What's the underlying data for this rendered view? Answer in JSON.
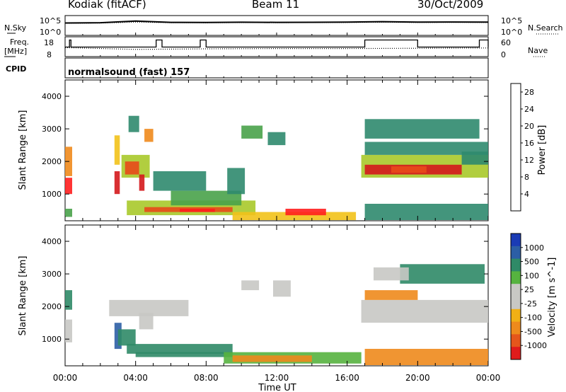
{
  "header": {
    "station": "Kodiak (fitACF)",
    "beam": "Beam 11",
    "date": "30/Oct/2009"
  },
  "status_panels": {
    "nsky_label": "N.Sky",
    "nsearch_label": "N.Search",
    "noise_ticks": [
      "10^5",
      "10^0"
    ],
    "freq_label_line1": "Freq.",
    "freq_label_line2": "[MHz]",
    "freq_ticks": [
      "18",
      "8"
    ],
    "nave_label": "Nave",
    "nave_ticks": [
      "60",
      "0"
    ],
    "cpid_label": "CPID",
    "cpid_text": "normalsound (fast) 157"
  },
  "colors": {
    "power_scale": [
      "#1f3fd9",
      "#2456a8",
      "#2f8a6e",
      "#49a24a",
      "#a9c92a",
      "#f2c21a",
      "#ef8a1c",
      "#e84a1a",
      "#d4181c",
      "#ff1e1e"
    ],
    "velocity_scale": [
      "#1a3bb5",
      "#2c5ea5",
      "#2f8a67",
      "#56b33f",
      "#c8c8c4",
      "#c8c8c4",
      "#f1b015",
      "#ee8a1c",
      "#e5561b",
      "#e01b1b"
    ]
  },
  "chart_data": [
    {
      "type": "line",
      "title": "Kodiak (fitACF)",
      "series": [
        {
          "name": "N.Sky",
          "x": [
            "00:00",
            "02:00",
            "04:00",
            "06:00",
            "08:00",
            "10:00",
            "12:00",
            "14:00",
            "16:00",
            "18:00",
            "20:00",
            "22:00",
            "00:00"
          ],
          "y": [
            1500,
            1800,
            5000,
            2200,
            2000,
            2400,
            2200,
            2300,
            2500,
            3500,
            2600,
            2800,
            2500
          ]
        },
        {
          "name": "N.Search",
          "x": [
            "00:00",
            "02:00",
            "04:00",
            "06:00",
            "08:00",
            "10:00",
            "12:00",
            "14:00",
            "16:00",
            "18:00",
            "20:00",
            "22:00",
            "00:00"
          ],
          "y": [
            1200,
            1400,
            2500,
            1800,
            1700,
            1900,
            1800,
            1900,
            2000,
            2400,
            2000,
            2200,
            2000
          ]
        }
      ],
      "ylabel": "N.Sky",
      "ylim_label": [
        "10^0",
        "10^5"
      ]
    },
    {
      "type": "line",
      "series": [
        {
          "name": "Freq. [MHz]",
          "x": [
            "00:00",
            "00:15",
            "00:20",
            "03:00",
            "05:10",
            "05:30",
            "07:40",
            "08:00",
            "10:00",
            "12:00",
            "13:00",
            "16:00",
            "17:00",
            "20:00",
            "20:30",
            "21:30",
            "22:20",
            "23:30",
            "00:00"
          ],
          "y": [
            13,
            17,
            13,
            13,
            17,
            13,
            17,
            13,
            13,
            13,
            13,
            13,
            17,
            13,
            13,
            13,
            13,
            17,
            13
          ]
        },
        {
          "name": "Nave",
          "x": [
            "00:00",
            "04:00",
            "08:00",
            "12:00",
            "16:00",
            "20:00",
            "00:00"
          ],
          "y": [
            28,
            22,
            24,
            25,
            25,
            26,
            27
          ]
        }
      ],
      "ylabel": "Freq. [MHz]",
      "y_ticks_left": [
        8,
        18
      ],
      "y2label": "Nave",
      "y_ticks_right": [
        0,
        60
      ]
    },
    {
      "type": "heatmap",
      "quantity": "Power",
      "xlabel": "",
      "ylabel": "Slant Range [km]",
      "x_ticks": [
        "00:00",
        "04:00",
        "08:00",
        "12:00",
        "16:00",
        "20:00",
        "00:00"
      ],
      "y_ticks": [
        1000,
        2000,
        3000,
        4000
      ],
      "ylim": [
        180,
        4500
      ],
      "colorbar_label": "Power [dB]",
      "colorbar_ticks": [
        4,
        8,
        12,
        16,
        20,
        24,
        28
      ],
      "colorbar_range": [
        0,
        30
      ],
      "regions": [
        {
          "t0": 0.0,
          "t1": 0.4,
          "r0": 1000,
          "r1": 1500,
          "v": 28
        },
        {
          "t0": 0.0,
          "t1": 0.4,
          "r0": 1550,
          "r1": 2450,
          "v": 18
        },
        {
          "t0": 0.0,
          "t1": 0.4,
          "r0": 300,
          "r1": 550,
          "v": 10
        },
        {
          "t0": 2.8,
          "t1": 3.1,
          "r0": 1900,
          "r1": 2800,
          "v": 16
        },
        {
          "t0": 2.8,
          "t1": 3.1,
          "r0": 1000,
          "r1": 1700,
          "v": 24
        },
        {
          "t0": 3.2,
          "t1": 4.8,
          "r0": 1500,
          "r1": 2200,
          "v": 12
        },
        {
          "t0": 3.4,
          "t1": 4.2,
          "r0": 1600,
          "r1": 2000,
          "v": 22
        },
        {
          "t0": 4.2,
          "t1": 4.5,
          "r0": 1100,
          "r1": 1600,
          "v": 26
        },
        {
          "t0": 3.6,
          "t1": 4.2,
          "r0": 2900,
          "r1": 3400,
          "v": 8
        },
        {
          "t0": 4.5,
          "t1": 5.0,
          "r0": 2600,
          "r1": 3000,
          "v": 20
        },
        {
          "t0": 3.5,
          "t1": 10.8,
          "r0": 350,
          "r1": 800,
          "v": 14
        },
        {
          "t0": 4.5,
          "t1": 9.5,
          "r0": 450,
          "r1": 600,
          "v": 22
        },
        {
          "t0": 6.5,
          "t1": 8.5,
          "r0": 450,
          "r1": 550,
          "v": 27
        },
        {
          "t0": 6.0,
          "t1": 10.0,
          "r0": 650,
          "r1": 1100,
          "v": 10
        },
        {
          "t0": 5.0,
          "t1": 8.0,
          "r0": 1100,
          "r1": 1700,
          "v": 6
        },
        {
          "t0": 9.2,
          "t1": 10.2,
          "r0": 1000,
          "r1": 1800,
          "v": 8
        },
        {
          "t0": 9.5,
          "t1": 16.5,
          "r0": 200,
          "r1": 450,
          "v": 16
        },
        {
          "t0": 12.5,
          "t1": 14.8,
          "r0": 350,
          "r1": 550,
          "v": 27
        },
        {
          "t0": 10.0,
          "t1": 11.2,
          "r0": 2700,
          "r1": 3100,
          "v": 10
        },
        {
          "t0": 11.5,
          "t1": 12.5,
          "r0": 2500,
          "r1": 2900,
          "v": 8
        },
        {
          "t0": 16.8,
          "t1": 24.0,
          "r0": 1500,
          "r1": 2200,
          "v": 12
        },
        {
          "t0": 17.0,
          "t1": 22.5,
          "r0": 1600,
          "r1": 1900,
          "v": 26
        },
        {
          "t0": 18.5,
          "t1": 20.5,
          "r0": 1650,
          "r1": 1850,
          "v": 22
        },
        {
          "t0": 17.0,
          "t1": 24.0,
          "r0": 2200,
          "r1": 2600,
          "v": 8
        },
        {
          "t0": 17.0,
          "t1": 23.5,
          "r0": 2700,
          "r1": 3300,
          "v": 8
        },
        {
          "t0": 17.0,
          "t1": 24.0,
          "r0": 200,
          "r1": 700,
          "v": 6
        },
        {
          "t0": 22.5,
          "t1": 24.0,
          "r0": 1900,
          "r1": 2300,
          "v": 8
        }
      ]
    },
    {
      "type": "heatmap",
      "quantity": "Velocity",
      "xlabel": "Time UT",
      "ylabel": "Slant Range [km]",
      "x_ticks": [
        "00:00",
        "04:00",
        "08:00",
        "12:00",
        "16:00",
        "20:00",
        "00:00"
      ],
      "y_ticks": [
        1000,
        2000,
        3000,
        4000
      ],
      "ylim": [
        180,
        4500
      ],
      "colorbar_label": "Velocity [m s^-1]",
      "colorbar_ticks": [
        "1000",
        "500",
        "100",
        "25",
        "-25",
        "-100",
        "-500",
        "-1000"
      ],
      "regions": [
        {
          "t0": 0.0,
          "t1": 0.4,
          "r0": 900,
          "r1": 1600,
          "v": -10
        },
        {
          "t0": 0.0,
          "t1": 0.4,
          "r0": 1900,
          "r1": 2500,
          "v": 150
        },
        {
          "t0": 2.8,
          "t1": 3.2,
          "r0": 700,
          "r1": 1500,
          "v": 600
        },
        {
          "t0": 3.0,
          "t1": 4.0,
          "r0": 800,
          "r1": 1300,
          "v": 200
        },
        {
          "t0": 3.5,
          "t1": 9.5,
          "r0": 550,
          "r1": 850,
          "v": 400
        },
        {
          "t0": 4.0,
          "t1": 9.5,
          "r0": 450,
          "r1": 600,
          "v": 150
        },
        {
          "t0": 2.5,
          "t1": 7.0,
          "r0": 1700,
          "r1": 2200,
          "v": 0
        },
        {
          "t0": 4.2,
          "t1": 5.0,
          "r0": 1300,
          "r1": 1800,
          "v": 0
        },
        {
          "t0": 9.0,
          "t1": 16.8,
          "r0": 250,
          "r1": 600,
          "v": 50
        },
        {
          "t0": 9.5,
          "t1": 14.0,
          "r0": 300,
          "r1": 500,
          "v": -120
        },
        {
          "t0": 10.0,
          "t1": 11.0,
          "r0": 2500,
          "r1": 2800,
          "v": 0
        },
        {
          "t0": 11.8,
          "t1": 12.8,
          "r0": 2300,
          "r1": 2800,
          "v": 0
        },
        {
          "t0": 16.8,
          "t1": 24.0,
          "r0": 1500,
          "r1": 2200,
          "v": 0
        },
        {
          "t0": 17.0,
          "t1": 20.0,
          "r0": 2200,
          "r1": 2500,
          "v": -150
        },
        {
          "t0": 19.0,
          "t1": 23.8,
          "r0": 2700,
          "r1": 3300,
          "v": 300
        },
        {
          "t0": 17.5,
          "t1": 19.5,
          "r0": 2800,
          "r1": 3200,
          "v": 0
        },
        {
          "t0": 17.0,
          "t1": 24.0,
          "r0": 200,
          "r1": 700,
          "v": -120
        }
      ]
    }
  ]
}
